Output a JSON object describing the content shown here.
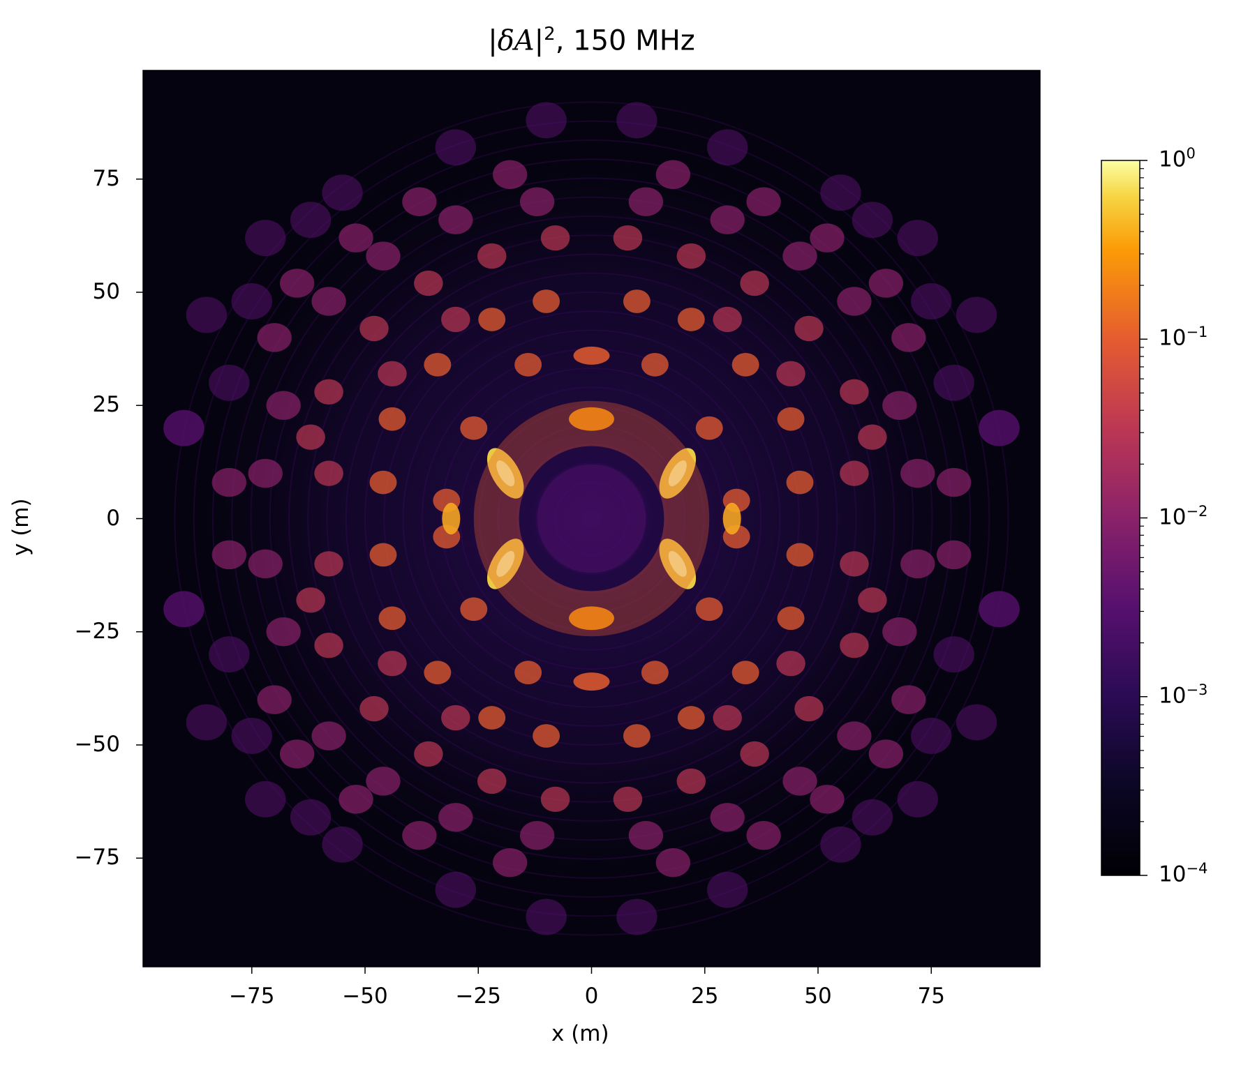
{
  "chart_data": {
    "type": "heatmap",
    "title": "|δA|², 150 MHz",
    "title_parts": {
      "prefix": "|",
      "symbol": "δA",
      "suffix": "|",
      "power": "2",
      "rest": ", 150 MHz"
    },
    "xlabel": "x (m)",
    "ylabel": "y (m)",
    "xlim": [
      -99,
      99
    ],
    "ylim": [
      -99,
      99
    ],
    "xticks": [
      -75,
      -50,
      -25,
      0,
      25,
      50,
      75
    ],
    "yticks": [
      75,
      50,
      25,
      0,
      -25,
      -50,
      -75
    ],
    "xtick_labels": [
      "−75",
      "−50",
      "−25",
      "0",
      "25",
      "50",
      "75"
    ],
    "ytick_labels": [
      "75",
      "50",
      "25",
      "0",
      "−25",
      "−50",
      "−75"
    ],
    "colormap": "inferno",
    "colorbar": {
      "scale": "log",
      "range": [
        0.0001,
        1
      ],
      "ticks": [
        1,
        0.1,
        0.01,
        0.001,
        0.0001
      ],
      "tick_labels": [
        {
          "base": "10",
          "exp": "0"
        },
        {
          "base": "10",
          "exp": "−1"
        },
        {
          "base": "10",
          "exp": "−2"
        },
        {
          "base": "10",
          "exp": "−3"
        },
        {
          "base": "10",
          "exp": "−4"
        }
      ]
    },
    "features": {
      "peak_value": 1,
      "background_value": 0.0001,
      "brightest_ring_radius_m": 22,
      "lobe_symmetry": "four-fold mirror symmetric about x and y axes"
    }
  }
}
